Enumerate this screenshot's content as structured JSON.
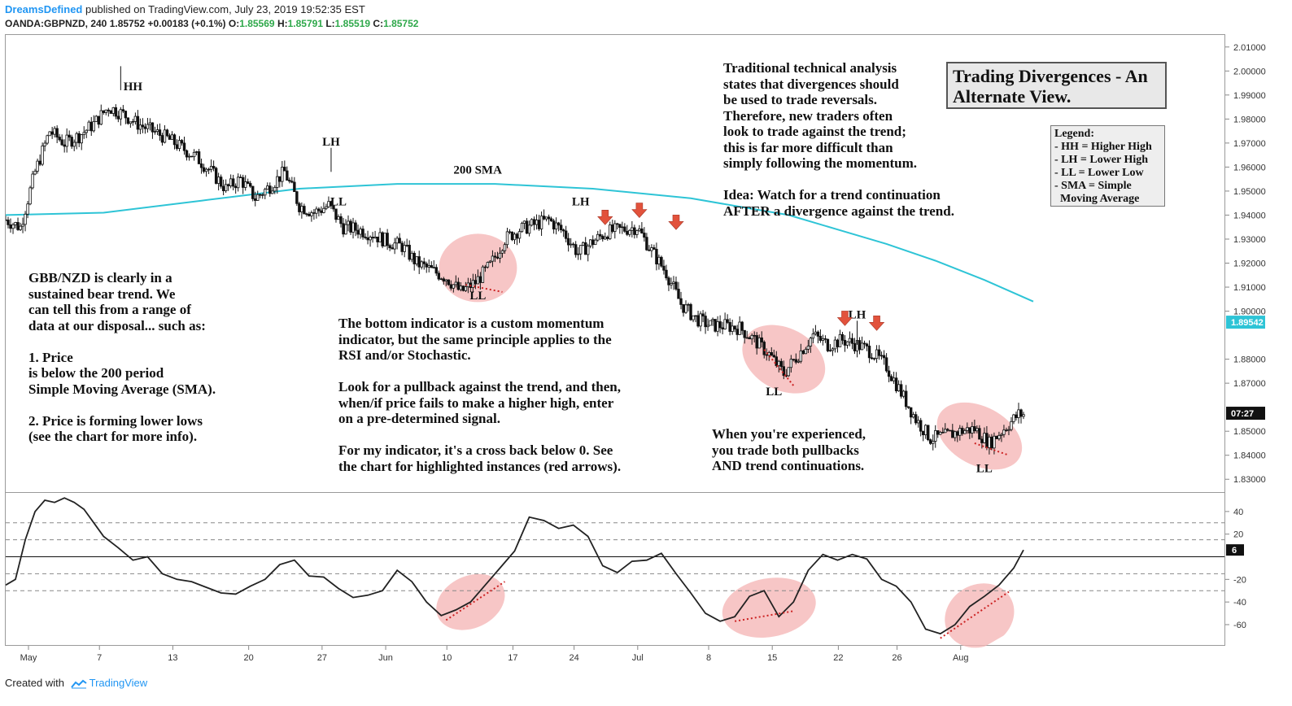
{
  "header": {
    "author": "DreamsDefined",
    "published": "published on TradingView.com, July 23, 2019 19:52:35 EST",
    "symbol": "OANDA:GBPNZD, 240",
    "last": "1.85752",
    "change": "+0.00183 (+0.1%)",
    "open_label": "O:",
    "open": "1.85569",
    "high_label": "H:",
    "high": "1.85791",
    "low_label": "L:",
    "low": "1.85519",
    "close_label": "C:",
    "close": "1.85752"
  },
  "title": "Trading Divergences - An\nAlternate View.",
  "legend": "Legend:\n- HH = Higher High\n- LH = Lower High\n- LL = Lower Low\n- SMA = Simple\n  Moving Average",
  "annotations": {
    "left_text": "GBB/NZD is clearly in a\nsustained bear trend. We\ncan tell this from a range of\ndata at our disposal... such as:\n\n1. Price\nis below the 200 period\nSimple Moving Average (SMA).\n\n2. Price is forming lower lows\n(see the chart for more info).",
    "middle_text": "The bottom indicator is a custom momentum\nindicator, but the same principle applies to the\nRSI and/or Stochastic.\n\nLook for a pullback against the trend, and then,\nwhen/if price fails to make a higher high, enter\non a pre-determined signal.\n\nFor my indicator, it's a cross back below 0. See\nthe chart for highlighted instances (red arrows).",
    "top_right_text": "Traditional technical analysis\nstates that divergences should\nbe used to trade reversals.\nTherefore, new traders often\nlook to trade against the trend;\nthis is far more difficult than\nsimply following the momentum.\n\nIdea: Watch for a trend continuation\nAFTER a divergence against the trend.",
    "bottom_right_text": "When you're experienced,\nyou trade both pullbacks\nAND trend continuations."
  },
  "colors": {
    "sma": "#2ec4d6",
    "price_badge": "#2ec4d6",
    "ellipse": "#f4b3b3",
    "arrow": "#e2523c",
    "positive": "#2ea84a"
  },
  "footer": {
    "prefix": "Created with",
    "brand": "TradingView"
  },
  "chart_data": [
    {
      "type": "candlestick",
      "title": "OANDA:GBPNZD, 240",
      "ylim": [
        1.825,
        2.015
      ],
      "y_ticks": [
        "2.01000",
        "2.00000",
        "1.99000",
        "1.98000",
        "1.97000",
        "1.96000",
        "1.95000",
        "1.94000",
        "1.93000",
        "1.92000",
        "1.91000",
        "1.90000",
        "1.88000",
        "1.87000",
        "1.85000",
        "1.84000",
        "1.83000"
      ],
      "price_badges": [
        {
          "label": "1.89542",
          "value": 1.89542
        },
        {
          "label": "07:27",
          "value": 1.8575
        }
      ],
      "x_ticks": [
        "May",
        "7",
        "13",
        "20",
        "27",
        "Jun",
        "10",
        "17",
        "24",
        "Jul",
        "8",
        "15",
        "22",
        "26",
        "Aug"
      ],
      "close_path": [
        [
          0,
          1.938
        ],
        [
          6,
          1.935
        ],
        [
          12,
          1.958
        ],
        [
          18,
          1.975
        ],
        [
          24,
          1.97
        ],
        [
          30,
          1.973
        ],
        [
          36,
          1.978
        ],
        [
          42,
          1.985
        ],
        [
          48,
          1.982
        ],
        [
          54,
          1.978
        ],
        [
          60,
          1.975
        ],
        [
          66,
          1.972
        ],
        [
          72,
          1.968
        ],
        [
          78,
          1.964
        ],
        [
          84,
          1.958
        ],
        [
          90,
          1.951
        ],
        [
          96,
          1.955
        ],
        [
          102,
          1.947
        ],
        [
          108,
          1.952
        ],
        [
          114,
          1.958
        ],
        [
          120,
          1.944
        ],
        [
          126,
          1.941
        ],
        [
          132,
          1.944
        ],
        [
          138,
          1.935
        ],
        [
          144,
          1.934
        ],
        [
          150,
          1.932
        ],
        [
          156,
          1.929
        ],
        [
          162,
          1.927
        ],
        [
          168,
          1.92
        ],
        [
          174,
          1.917
        ],
        [
          180,
          1.914
        ],
        [
          186,
          1.908
        ],
        [
          192,
          1.912
        ],
        [
          198,
          1.919
        ],
        [
          204,
          1.93
        ],
        [
          210,
          1.934
        ],
        [
          216,
          1.936
        ],
        [
          222,
          1.938
        ],
        [
          228,
          1.933
        ],
        [
          234,
          1.924
        ],
        [
          240,
          1.929
        ],
        [
          246,
          1.933
        ],
        [
          252,
          1.934
        ],
        [
          258,
          1.935
        ],
        [
          264,
          1.925
        ],
        [
          270,
          1.916
        ],
        [
          276,
          1.903
        ],
        [
          282,
          1.897
        ],
        [
          288,
          1.894
        ],
        [
          294,
          1.894
        ],
        [
          300,
          1.893
        ],
        [
          306,
          1.888
        ],
        [
          312,
          1.882
        ],
        [
          318,
          1.874
        ],
        [
          324,
          1.882
        ],
        [
          330,
          1.89
        ],
        [
          336,
          1.886
        ],
        [
          342,
          1.888
        ],
        [
          348,
          1.886
        ],
        [
          354,
          1.883
        ],
        [
          360,
          1.877
        ],
        [
          366,
          1.866
        ],
        [
          372,
          1.855
        ],
        [
          378,
          1.847
        ],
        [
          384,
          1.848
        ],
        [
          390,
          1.85
        ],
        [
          396,
          1.851
        ],
        [
          402,
          1.845
        ],
        [
          408,
          1.851
        ],
        [
          414,
          1.857
        ]
      ],
      "sma_200": [
        [
          0,
          1.94
        ],
        [
          40,
          1.941
        ],
        [
          80,
          1.946
        ],
        [
          120,
          1.951
        ],
        [
          160,
          1.953
        ],
        [
          200,
          1.953
        ],
        [
          240,
          1.951
        ],
        [
          280,
          1.947
        ],
        [
          320,
          1.94
        ],
        [
          340,
          1.934
        ],
        [
          360,
          1.928
        ],
        [
          380,
          1.921
        ],
        [
          400,
          1.913
        ],
        [
          420,
          1.904
        ]
      ],
      "sma_label": "200 SMA",
      "markers": [
        {
          "label": "HH",
          "t": 52,
          "value": 1.992
        },
        {
          "label": "LH",
          "t": 133,
          "value": 1.969
        },
        {
          "label": "LL",
          "t": 136,
          "value": 1.944
        },
        {
          "label": "LL",
          "t": 193,
          "value": 1.905
        },
        {
          "label": "LH",
          "t": 235,
          "value": 1.944
        },
        {
          "label": "LL",
          "t": 314,
          "value": 1.865
        },
        {
          "label": "LH",
          "t": 348,
          "value": 1.897
        },
        {
          "label": "LL",
          "t": 400,
          "value": 1.833
        }
      ],
      "signal_arrows": [
        {
          "t": 245,
          "value": 1.938
        },
        {
          "t": 259,
          "value": 1.941
        },
        {
          "t": 274,
          "value": 1.936
        },
        {
          "t": 343,
          "value": 1.896
        },
        {
          "t": 356,
          "value": 1.894
        }
      ]
    },
    {
      "type": "line",
      "title": "Custom momentum indicator",
      "ylim": [
        -78,
        55
      ],
      "y_ticks": [
        "40",
        "20",
        "-20",
        "-40",
        "-60"
      ],
      "reference_levels": [
        30,
        15,
        0,
        -15,
        -30
      ],
      "last_value": "6",
      "values": [
        [
          0,
          -25
        ],
        [
          4,
          -20
        ],
        [
          8,
          15
        ],
        [
          12,
          40
        ],
        [
          16,
          50
        ],
        [
          20,
          48
        ],
        [
          24,
          52
        ],
        [
          28,
          48
        ],
        [
          32,
          42
        ],
        [
          36,
          30
        ],
        [
          40,
          18
        ],
        [
          46,
          8
        ],
        [
          52,
          -3
        ],
        [
          58,
          0
        ],
        [
          64,
          -15
        ],
        [
          70,
          -20
        ],
        [
          76,
          -22
        ],
        [
          82,
          -27
        ],
        [
          88,
          -32
        ],
        [
          94,
          -33
        ],
        [
          100,
          -26
        ],
        [
          106,
          -20
        ],
        [
          112,
          -7
        ],
        [
          118,
          -3
        ],
        [
          124,
          -17
        ],
        [
          130,
          -18
        ],
        [
          136,
          -28
        ],
        [
          142,
          -36
        ],
        [
          148,
          -34
        ],
        [
          154,
          -30
        ],
        [
          160,
          -12
        ],
        [
          166,
          -22
        ],
        [
          172,
          -40
        ],
        [
          178,
          -52
        ],
        [
          184,
          -47
        ],
        [
          190,
          -40
        ],
        [
          196,
          -25
        ],
        [
          202,
          -10
        ],
        [
          208,
          5
        ],
        [
          214,
          35
        ],
        [
          220,
          32
        ],
        [
          226,
          25
        ],
        [
          232,
          28
        ],
        [
          238,
          18
        ],
        [
          244,
          -8
        ],
        [
          250,
          -14
        ],
        [
          256,
          -4
        ],
        [
          262,
          -3
        ],
        [
          268,
          3
        ],
        [
          274,
          -15
        ],
        [
          280,
          -32
        ],
        [
          286,
          -50
        ],
        [
          292,
          -57
        ],
        [
          298,
          -53
        ],
        [
          304,
          -35
        ],
        [
          310,
          -30
        ],
        [
          316,
          -53
        ],
        [
          322,
          -40
        ],
        [
          328,
          -12
        ],
        [
          334,
          2
        ],
        [
          340,
          -3
        ],
        [
          346,
          2
        ],
        [
          352,
          -2
        ],
        [
          358,
          -20
        ],
        [
          364,
          -26
        ],
        [
          370,
          -40
        ],
        [
          376,
          -64
        ],
        [
          382,
          -68
        ],
        [
          388,
          -60
        ],
        [
          394,
          -44
        ],
        [
          400,
          -35
        ],
        [
          406,
          -25
        ],
        [
          412,
          -10
        ],
        [
          416,
          6
        ]
      ],
      "divergence_lines": [
        [
          [
            180,
            -56
          ],
          [
            204,
            -22
          ]
        ],
        [
          [
            298,
            -57
          ],
          [
            322,
            -48
          ]
        ],
        [
          [
            382,
            -72
          ],
          [
            410,
            -31
          ]
        ]
      ]
    }
  ]
}
